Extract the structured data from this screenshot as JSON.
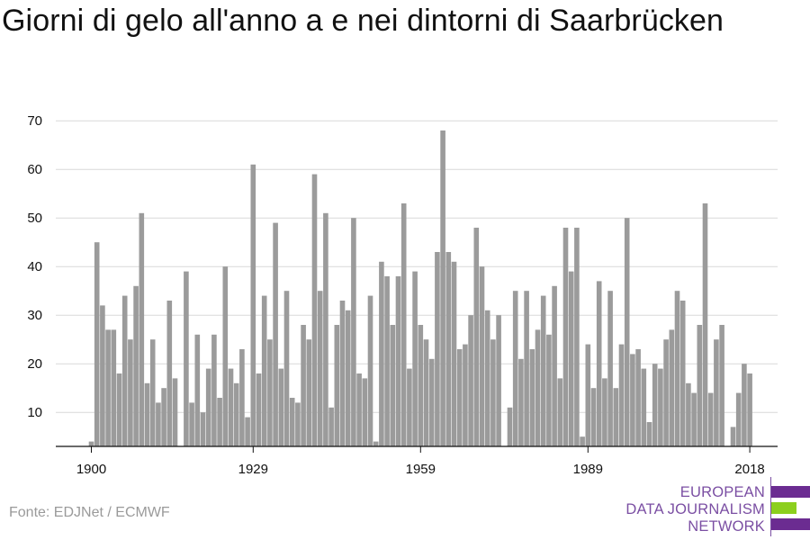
{
  "title": "Giorni di gelo all'anno a e nei dintorni di Saarbrücken",
  "source": "Fonte: EDJNet / ECMWF",
  "logo": {
    "lines": [
      "EUROPEAN",
      "DATA JOURNALISM",
      "NETWORK"
    ],
    "colors": {
      "purple": "#6b2c91",
      "green": "#8ccf1e"
    }
  },
  "colors": {
    "bar": "#9b9b9b",
    "grid": "#d9d9d9",
    "axis": "#111111",
    "text": "#111111"
  },
  "chart_data": {
    "type": "bar",
    "title": "Giorni di gelo all'anno a e nei dintorni di Saarbrücken",
    "xlabel": "",
    "ylabel": "",
    "ylim": [
      3,
      72
    ],
    "yticks": [
      10,
      20,
      30,
      40,
      50,
      60,
      70
    ],
    "xticks": [
      1900,
      1929,
      1959,
      1989,
      2018
    ],
    "grid": true,
    "x": [
      1900,
      1901,
      1902,
      1903,
      1904,
      1905,
      1906,
      1907,
      1908,
      1909,
      1910,
      1911,
      1912,
      1913,
      1914,
      1915,
      1916,
      1917,
      1918,
      1919,
      1920,
      1921,
      1922,
      1923,
      1924,
      1925,
      1926,
      1927,
      1928,
      1929,
      1930,
      1931,
      1932,
      1933,
      1934,
      1935,
      1936,
      1937,
      1938,
      1939,
      1940,
      1941,
      1942,
      1943,
      1944,
      1945,
      1946,
      1947,
      1948,
      1949,
      1950,
      1951,
      1952,
      1953,
      1954,
      1955,
      1956,
      1957,
      1958,
      1959,
      1960,
      1961,
      1962,
      1963,
      1964,
      1965,
      1966,
      1967,
      1968,
      1969,
      1970,
      1971,
      1972,
      1973,
      1974,
      1975,
      1976,
      1977,
      1978,
      1979,
      1980,
      1981,
      1982,
      1983,
      1984,
      1985,
      1986,
      1987,
      1988,
      1989,
      1990,
      1991,
      1992,
      1993,
      1994,
      1995,
      1996,
      1997,
      1998,
      1999,
      2000,
      2001,
      2002,
      2003,
      2004,
      2005,
      2006,
      2007,
      2008,
      2009,
      2010,
      2011,
      2012,
      2013,
      2014,
      2015,
      2016,
      2017,
      2018
    ],
    "values": [
      4,
      45,
      32,
      27,
      27,
      18,
      34,
      25,
      36,
      51,
      16,
      25,
      12,
      15,
      33,
      17,
      3,
      39,
      12,
      26,
      10,
      19,
      26,
      13,
      40,
      19,
      16,
      23,
      9,
      61,
      18,
      34,
      25,
      49,
      19,
      35,
      13,
      12,
      28,
      25,
      59,
      35,
      51,
      11,
      28,
      33,
      31,
      50,
      18,
      17,
      34,
      4,
      41,
      38,
      28,
      38,
      53,
      19,
      39,
      28,
      25,
      21,
      43,
      68,
      43,
      41,
      23,
      24,
      30,
      48,
      40,
      31,
      25,
      30,
      3,
      11,
      35,
      21,
      35,
      23,
      27,
      34,
      26,
      36,
      17,
      48,
      39,
      48,
      5,
      24,
      15,
      37,
      17,
      35,
      15,
      24,
      50,
      22,
      23,
      19,
      8,
      20,
      19,
      25,
      27,
      35,
      33,
      16,
      14,
      28,
      53,
      14,
      25,
      28,
      2,
      7,
      14,
      20,
      18
    ]
  }
}
